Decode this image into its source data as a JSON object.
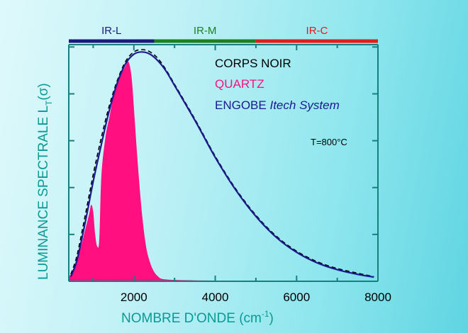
{
  "chart_data": {
    "type": "area",
    "title": "",
    "xlabel": "NOMBRE D'ONDE (cm",
    "xlabel_sup": "-1",
    "xlabel_close": ")",
    "ylabel": "LUMINANCE SPECTRALE L",
    "ylabel_sub": "T",
    "ylabel_paren": "(σ)",
    "xlim": [
      400,
      8000
    ],
    "ylim": [
      0,
      1.0
    ],
    "x_ticks": [
      2000,
      4000,
      6000,
      8000
    ],
    "x_tick_labels": [
      "2000",
      "4000",
      "6000",
      "8000"
    ],
    "y_tick_count": 5,
    "grid": false,
    "bands": [
      {
        "label": "IR-L",
        "from": 400,
        "to": 2500,
        "color": "#1a1a7a"
      },
      {
        "label": "IR-M",
        "from": 2500,
        "to": 5000,
        "color": "#1f7f1f"
      },
      {
        "label": "IR-C",
        "from": 5000,
        "to": 8000,
        "color": "#e31b1b"
      }
    ],
    "legend_position": "top-right",
    "annotation": "T=800°C",
    "series": [
      {
        "name": "CORPS NOIR",
        "style": "dashed",
        "color": "#000000",
        "x": [
          450,
          600,
          800,
          1000,
          1200,
          1400,
          1600,
          1800,
          2000,
          2200,
          2400,
          2600,
          2800,
          3000,
          3500,
          4000,
          4500,
          5000,
          5500,
          6000,
          6500,
          7000,
          7500,
          7900
        ],
        "y": [
          0.03,
          0.11,
          0.28,
          0.46,
          0.62,
          0.76,
          0.87,
          0.95,
          0.99,
          1.0,
          0.99,
          0.96,
          0.91,
          0.85,
          0.7,
          0.54,
          0.4,
          0.285,
          0.195,
          0.13,
          0.085,
          0.055,
          0.035,
          0.02
        ]
      },
      {
        "name": "QUARTZ",
        "style": "filled",
        "color": "#ff0f7f",
        "x": [
          400,
          450,
          500,
          600,
          700,
          800,
          900,
          950,
          1000,
          1050,
          1100,
          1150,
          1200,
          1300,
          1400,
          1500,
          1600,
          1700,
          1800,
          1850,
          1900,
          1950,
          2000,
          2100,
          2200,
          2300,
          2400,
          2500,
          2600,
          2700,
          3000,
          3500,
          4000,
          4500
        ],
        "y": [
          0.02,
          0.03,
          0.05,
          0.09,
          0.15,
          0.22,
          0.29,
          0.33,
          0.3,
          0.2,
          0.15,
          0.18,
          0.45,
          0.62,
          0.71,
          0.8,
          0.86,
          0.9,
          0.93,
          0.95,
          0.93,
          0.87,
          0.75,
          0.5,
          0.29,
          0.15,
          0.08,
          0.04,
          0.02,
          0.01,
          0.006,
          0.004,
          0.003,
          0.002
        ]
      },
      {
        "name": "ENGOBE",
        "name_suffix": "Itech System",
        "style": "solid",
        "color": "#1a1a8c",
        "x": [
          450,
          600,
          800,
          1000,
          1200,
          1400,
          1600,
          1800,
          2000,
          2200,
          2400,
          2600,
          2800,
          3000,
          3500,
          4000,
          4500,
          5000,
          5500,
          6000,
          6500,
          7000,
          7500,
          7900
        ],
        "y": [
          0.02,
          0.09,
          0.25,
          0.43,
          0.59,
          0.74,
          0.86,
          0.94,
          0.98,
          0.99,
          0.98,
          0.95,
          0.905,
          0.845,
          0.695,
          0.535,
          0.395,
          0.28,
          0.19,
          0.125,
          0.08,
          0.05,
          0.03,
          0.018
        ]
      }
    ]
  },
  "colors": {
    "axis": "#17807f",
    "label": "#0a9a95"
  }
}
